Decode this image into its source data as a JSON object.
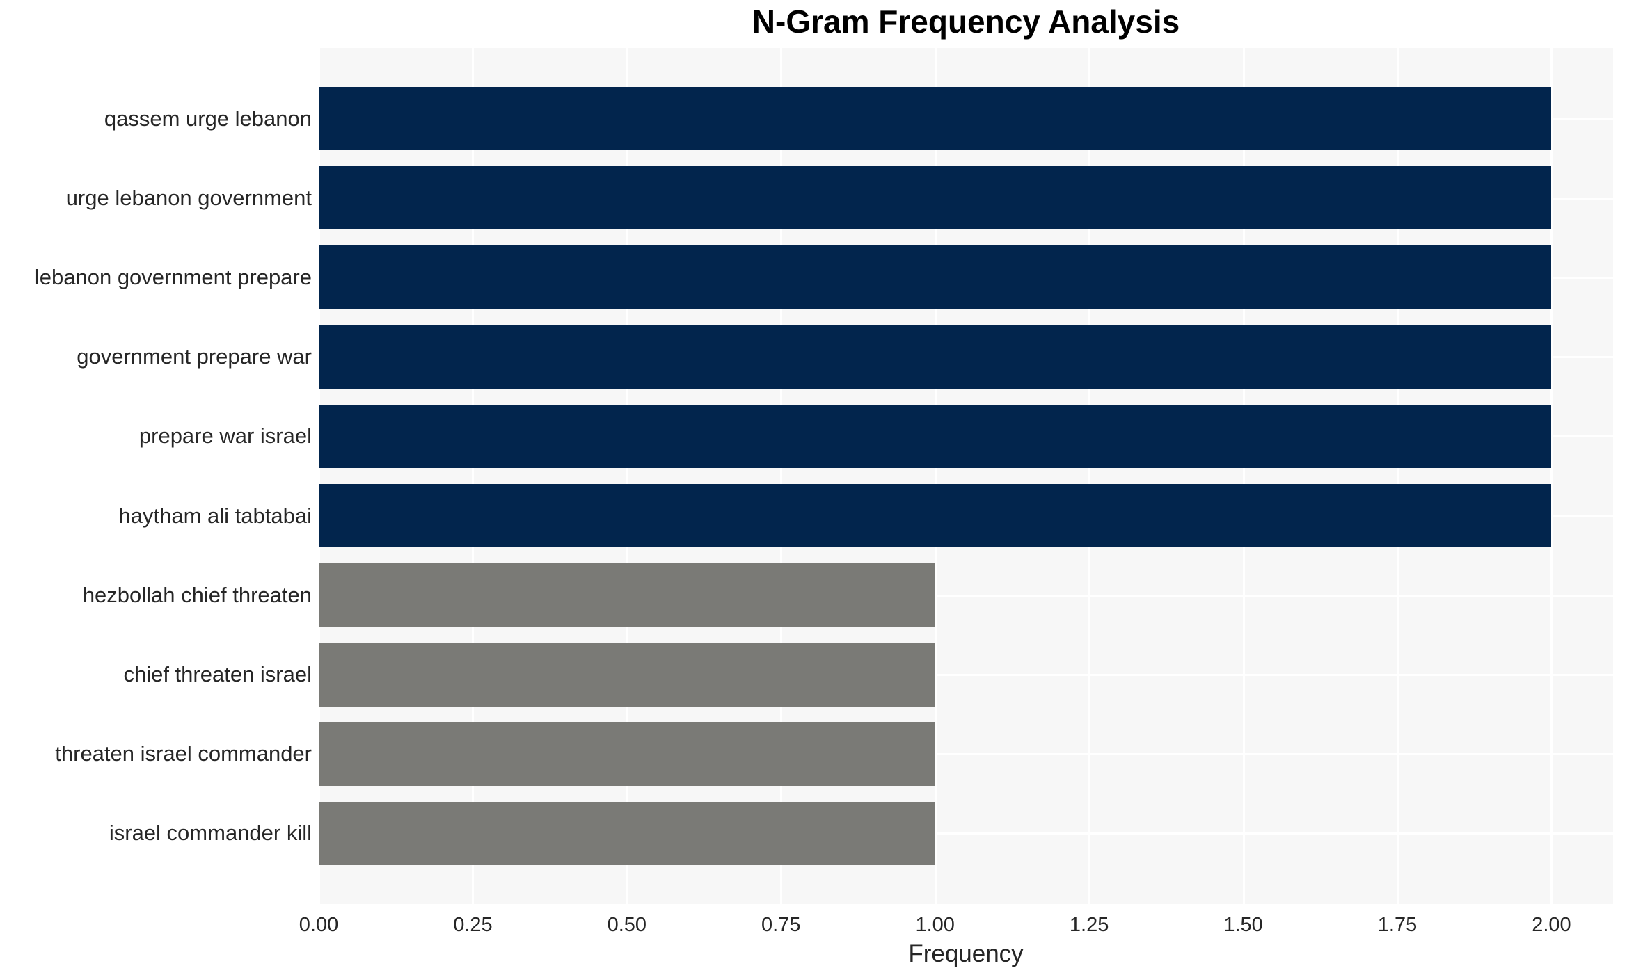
{
  "title": "N-Gram Frequency Analysis",
  "chart_data": {
    "type": "bar",
    "orientation": "horizontal",
    "title": "N-Gram Frequency Analysis",
    "xlabel": "Frequency",
    "ylabel": "",
    "categories": [
      "qassem urge lebanon",
      "urge lebanon government",
      "lebanon government prepare",
      "government prepare war",
      "prepare war israel",
      "haytham ali tabtabai",
      "hezbollah chief threaten",
      "chief threaten israel",
      "threaten israel commander",
      "israel commander kill"
    ],
    "values": [
      2,
      2,
      2,
      2,
      2,
      2,
      1,
      1,
      1,
      1
    ],
    "bar_colors": [
      "#02254d",
      "#02254d",
      "#02254d",
      "#02254d",
      "#02254d",
      "#02254d",
      "#7a7a76",
      "#7a7a76",
      "#7a7a76",
      "#7a7a76"
    ],
    "xlim": [
      0,
      2.1
    ],
    "x_tick_values": [
      0,
      0.25,
      0.5,
      0.75,
      1.0,
      1.25,
      1.5,
      1.75,
      2.0
    ],
    "x_tick_labels": [
      "0.00",
      "0.25",
      "0.50",
      "0.75",
      "1.00",
      "1.25",
      "1.50",
      "1.75",
      "2.00"
    ],
    "grid": true,
    "legend": false,
    "colors": {
      "panel_background": "#f7f7f7",
      "grid": "#ffffff",
      "figure_background": "#ffffff",
      "high_frequency_bar": "#02254d",
      "low_frequency_bar": "#7a7a76",
      "tick_text": "#262626",
      "title_text": "#000000"
    }
  }
}
